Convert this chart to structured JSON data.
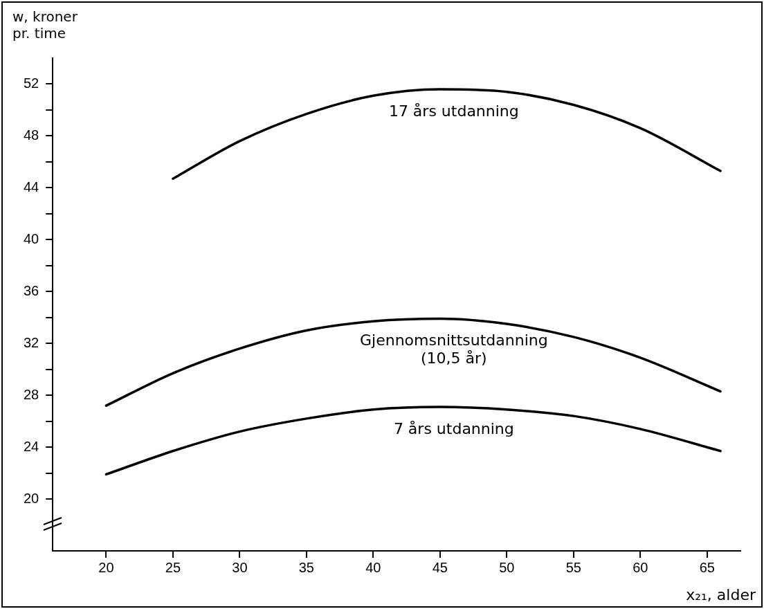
{
  "chart_data": {
    "type": "line",
    "xlabel": "x₂₁, alder",
    "ylabel": "w, kroner pr. time",
    "x": [
      20,
      25,
      30,
      35,
      40,
      45,
      50,
      55,
      60,
      66
    ],
    "series": [
      {
        "name": "17 års utdanning",
        "color": "#000000",
        "x": [
          25,
          30,
          35,
          40,
          45,
          50,
          55,
          60,
          66
        ],
        "values": [
          44.7,
          47.6,
          49.7,
          51.1,
          51.6,
          51.4,
          50.4,
          48.6,
          45.3
        ]
      },
      {
        "name": "Gjennomsnittsutdanning (10,5 år)",
        "color": "#000000",
        "values": [
          27.2,
          29.7,
          31.6,
          33.0,
          33.7,
          33.9,
          33.5,
          32.5,
          30.9,
          28.3
        ]
      },
      {
        "name": "7 års utdanning",
        "color": "#000000",
        "values": [
          21.9,
          23.7,
          25.2,
          26.2,
          26.9,
          27.1,
          26.9,
          26.4,
          25.4,
          23.7
        ]
      }
    ],
    "xlim": [
      16,
      67.5
    ],
    "xticks": [
      20,
      25,
      30,
      35,
      40,
      45,
      50,
      55,
      60,
      65
    ],
    "ylim": [
      16,
      54
    ],
    "yticks": [
      20,
      {
        "value": 22,
        "label": null
      },
      24,
      {
        "value": 26,
        "label": null
      },
      28,
      {
        "value": 30,
        "label": null
      },
      32,
      {
        "value": 34,
        "label": null
      },
      36,
      {
        "value": 38,
        "label": null
      },
      40,
      {
        "value": 42,
        "label": null
      },
      44,
      {
        "value": 46,
        "label": null
      },
      48,
      {
        "value": 50,
        "label": null
      },
      52
    ],
    "grid": false,
    "legend": false,
    "marker": "none",
    "line_style": "solid"
  }
}
